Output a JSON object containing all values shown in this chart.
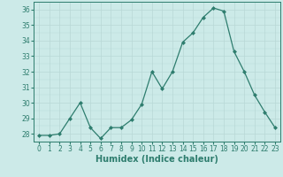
{
  "xlabel": "Humidex (Indice chaleur)",
  "ylabel": "",
  "x": [
    0,
    1,
    2,
    3,
    4,
    5,
    6,
    7,
    8,
    9,
    10,
    11,
    12,
    13,
    14,
    15,
    16,
    17,
    18,
    19,
    20,
    21,
    22,
    23
  ],
  "y": [
    27.9,
    27.9,
    28.0,
    29.0,
    30.0,
    28.4,
    27.7,
    28.4,
    28.4,
    28.9,
    29.9,
    32.0,
    30.9,
    32.0,
    33.9,
    34.5,
    35.5,
    36.1,
    35.9,
    33.3,
    32.0,
    30.5,
    29.4,
    28.4
  ],
  "ylim": [
    27.5,
    36.5
  ],
  "xlim": [
    -0.5,
    23.5
  ],
  "yticks": [
    28,
    29,
    30,
    31,
    32,
    33,
    34,
    35,
    36
  ],
  "xticks": [
    0,
    1,
    2,
    3,
    4,
    5,
    6,
    7,
    8,
    9,
    10,
    11,
    12,
    13,
    14,
    15,
    16,
    17,
    18,
    19,
    20,
    21,
    22,
    23
  ],
  "line_color": "#2e7d6e",
  "marker": "D",
  "marker_size": 2.0,
  "bg_color": "#cceae8",
  "grid_color": "#b8d8d6",
  "tick_fontsize": 5.5,
  "label_fontsize": 7.0
}
